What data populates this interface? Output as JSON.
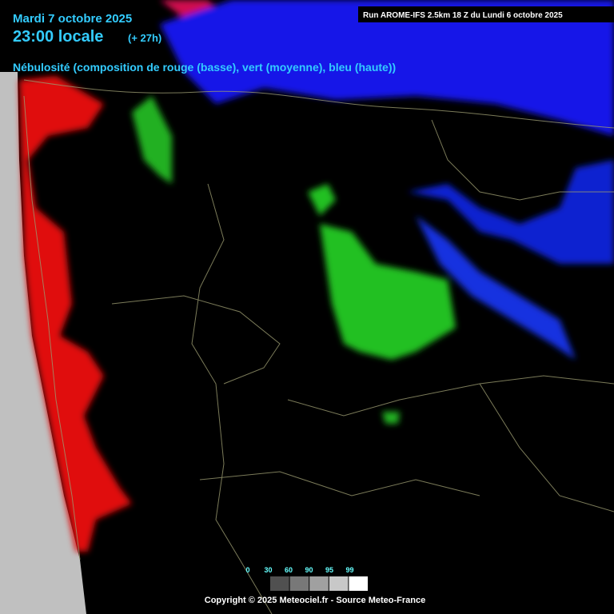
{
  "header": {
    "date": "Mardi 7 octobre 2025",
    "time": "23:00 locale",
    "lead": "(+ 27h)",
    "subtitle": "Nébulosité (composition de rouge (basse), vert (moyenne), bleu (haute))",
    "run": "Run AROME-IFS 2.5km 18 Z du Lundi 6 octobre 2025"
  },
  "legend": {
    "ticks": [
      0,
      30,
      60,
      90,
      95,
      99
    ],
    "colors": [
      "#505050",
      "#787878",
      "#a0a0a0",
      "#c8c8c8",
      "#ffffff"
    ]
  },
  "footer": {
    "copyright": "Copyright © 2025 Meteociel.fr - Source Meteo-France"
  }
}
